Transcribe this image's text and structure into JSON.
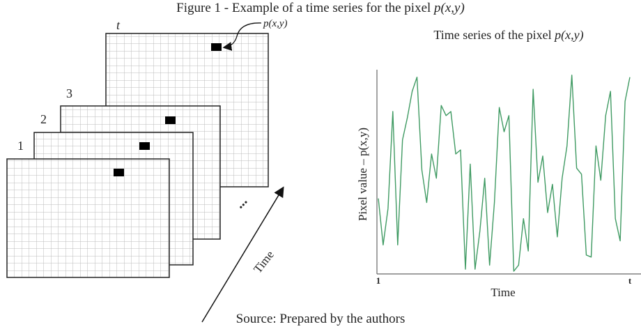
{
  "caption": {
    "text": "Figure 1 - Example of a time series for the pixel ",
    "var": "p(x,y)"
  },
  "diagram": {
    "frame_labels": [
      "1",
      "2",
      "3",
      "t"
    ],
    "pixel_label": "p(x,y)",
    "ellipsis": "...",
    "arrow_label": "Time"
  },
  "chart_data": {
    "type": "line",
    "title": "Time series of the pixel ",
    "title_var": "p(x,y)",
    "y_label": "Pixel value – p(x,y)",
    "x_label": "Time",
    "categories": [
      "1",
      null,
      null,
      null,
      null,
      null,
      null,
      null,
      null,
      null,
      null,
      null,
      null,
      null,
      null,
      null,
      null,
      null,
      null,
      null,
      null,
      null,
      null,
      null,
      null,
      null,
      null,
      null,
      null,
      null,
      null,
      null,
      null,
      null,
      null,
      null,
      null,
      null,
      null,
      null,
      null,
      null,
      null,
      null,
      null,
      null,
      null,
      null,
      null,
      null,
      null,
      null,
      "t"
    ],
    "values": [
      37,
      14,
      32,
      80,
      14,
      66,
      77,
      90,
      97,
      51,
      35,
      59,
      47,
      83,
      78,
      80,
      59,
      61,
      2,
      54,
      2,
      21,
      47,
      4,
      35,
      82,
      70,
      78,
      1,
      4,
      27,
      11,
      91,
      45,
      58,
      30,
      44,
      18,
      47,
      63,
      98,
      52,
      49,
      9,
      8,
      63,
      46,
      78,
      90,
      27,
      16,
      85,
      97
    ],
    "color": "#3f9a62",
    "ylim": [
      0,
      100
    ]
  },
  "source": "Source: Prepared by the authors"
}
